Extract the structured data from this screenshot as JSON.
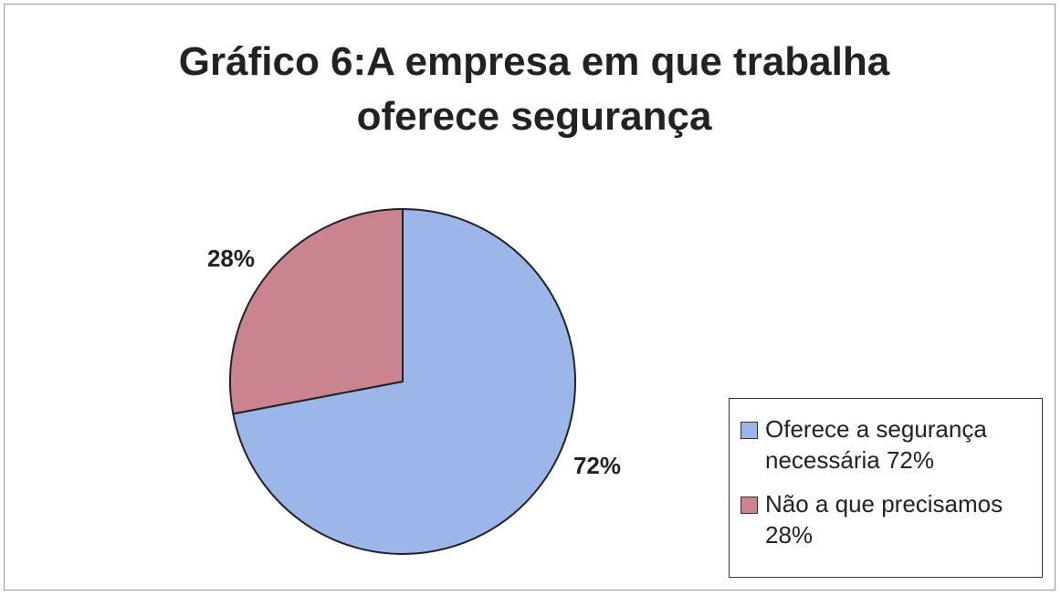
{
  "chart_data": {
    "type": "pie",
    "title": "Gráfico 6:A empresa em que trabalha oferece segurança",
    "categories": [
      "Oferece a segurança necessária 72%",
      "Não a que precisamos 28%"
    ],
    "values": [
      72,
      28
    ],
    "value_labels": [
      "72%",
      "28%"
    ],
    "colors": [
      "#9db6ea",
      "#c98490"
    ],
    "legend": "right"
  }
}
